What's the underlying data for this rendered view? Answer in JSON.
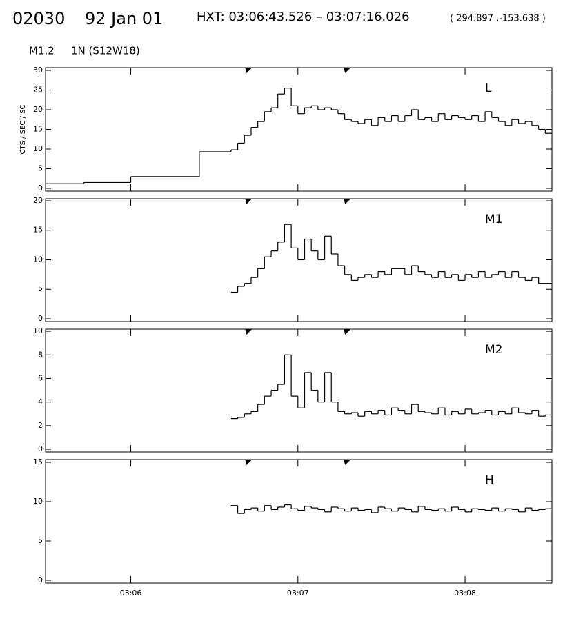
{
  "header": {
    "event": "02030",
    "date": "92 Jan 01",
    "interval": "HXT: 03:06:43.526 – 03:07:16.026",
    "coords": "( 294.897 ,-153.638 )",
    "class": "M1.2",
    "location": "1N (S12W18)"
  },
  "chart_data": [
    {
      "type": "line",
      "step": true,
      "title": "L",
      "ylabel": "CTS / SEC / SC",
      "color": "#000000",
      "x": [
        5.49,
        5.72,
        6.0,
        6.41,
        6.6,
        6.64,
        6.68,
        6.72,
        6.76,
        6.8,
        6.84,
        6.88,
        6.92,
        6.96,
        7,
        7.04,
        7.08,
        7.12,
        7.16,
        7.2,
        7.24,
        7.28,
        7.32,
        7.36,
        7.4,
        7.44,
        7.48,
        7.52,
        7.56,
        7.6,
        7.64,
        7.68,
        7.72,
        7.76,
        7.8,
        7.84,
        7.88,
        7.92,
        7.96,
        8,
        8.04,
        8.08,
        8.12,
        8.16,
        8.2,
        8.24,
        8.28,
        8.32,
        8.36,
        8.4,
        8.44,
        8.48
      ],
      "values": [
        1.2,
        1.5,
        3,
        9.3,
        9.8,
        11.5,
        13.5,
        15.5,
        17,
        19.5,
        20.5,
        24,
        25.5,
        21,
        19,
        20.5,
        21,
        20,
        20.5,
        20,
        19,
        17.5,
        17,
        16.5,
        17.5,
        16,
        18,
        17,
        18.5,
        17,
        18.5,
        20,
        17.5,
        18,
        17,
        19,
        17.5,
        18.5,
        18,
        17.5,
        18.5,
        17,
        19.5,
        18,
        17,
        16,
        17.5,
        16.5,
        17,
        16,
        15,
        14
      ],
      "xlim": [
        5.49,
        8.52
      ],
      "xticks": [
        6,
        7,
        8
      ],
      "ylim": [
        -0.7,
        30.7
      ],
      "yticks": [
        0,
        5,
        10,
        15,
        20,
        25,
        30
      ],
      "markers": [
        6.705,
        7.295
      ]
    },
    {
      "type": "line",
      "step": true,
      "title": "M1",
      "color": "#000000",
      "x": [
        6.6,
        6.64,
        6.68,
        6.72,
        6.76,
        6.8,
        6.84,
        6.88,
        6.92,
        6.96,
        7,
        7.04,
        7.08,
        7.12,
        7.16,
        7.2,
        7.24,
        7.28,
        7.32,
        7.36,
        7.4,
        7.44,
        7.48,
        7.52,
        7.56,
        7.6,
        7.64,
        7.68,
        7.72,
        7.76,
        7.8,
        7.84,
        7.88,
        7.92,
        7.96,
        8,
        8.04,
        8.08,
        8.12,
        8.16,
        8.2,
        8.24,
        8.28,
        8.32,
        8.36,
        8.4,
        8.44,
        8.48
      ],
      "values": [
        4.5,
        5.5,
        6,
        7,
        8.5,
        10.5,
        11.5,
        13,
        16,
        12,
        10,
        13.5,
        11.5,
        10,
        14,
        11,
        9,
        7.5,
        6.5,
        7,
        7.5,
        7,
        8,
        7.5,
        8.5,
        8.5,
        7.5,
        9,
        8,
        7.5,
        7,
        8,
        7,
        7.5,
        6.5,
        7.5,
        7,
        8,
        7,
        7.5,
        8,
        7,
        8,
        7,
        6.5,
        7,
        6,
        6
      ],
      "xlim": [
        5.49,
        8.52
      ],
      "xticks": [
        6,
        7,
        8
      ],
      "ylim": [
        -0.47,
        20.35
      ],
      "yticks": [
        0,
        5,
        10,
        15,
        20
      ],
      "markers": [
        6.705,
        7.295
      ]
    },
    {
      "type": "line",
      "step": true,
      "title": "M2",
      "color": "#000000",
      "x": [
        6.6,
        6.64,
        6.68,
        6.72,
        6.76,
        6.8,
        6.84,
        6.88,
        6.92,
        6.96,
        7,
        7.04,
        7.08,
        7.12,
        7.16,
        7.2,
        7.24,
        7.28,
        7.32,
        7.36,
        7.4,
        7.44,
        7.48,
        7.52,
        7.56,
        7.6,
        7.64,
        7.68,
        7.72,
        7.76,
        7.8,
        7.84,
        7.88,
        7.92,
        7.96,
        8,
        8.04,
        8.08,
        8.12,
        8.16,
        8.2,
        8.24,
        8.28,
        8.32,
        8.36,
        8.4,
        8.44,
        8.48
      ],
      "values": [
        2.6,
        2.7,
        3,
        3.2,
        3.8,
        4.5,
        5,
        5.5,
        8,
        4.5,
        3.5,
        6.5,
        5,
        4,
        6.5,
        4,
        3.2,
        3,
        3.1,
        2.8,
        3.2,
        3,
        3.3,
        2.9,
        3.5,
        3.3,
        3,
        3.8,
        3.2,
        3.1,
        3,
        3.5,
        2.9,
        3.2,
        3,
        3.4,
        3,
        3.1,
        3.3,
        2.9,
        3.2,
        3,
        3.5,
        3.1,
        3,
        3.3,
        2.8,
        2.9
      ],
      "xlim": [
        5.49,
        8.52
      ],
      "xticks": [
        6,
        7,
        8
      ],
      "ylim": [
        -0.23,
        10.18
      ],
      "yticks": [
        0,
        2,
        4,
        6,
        8,
        10
      ],
      "markers": [
        6.705,
        7.295
      ]
    },
    {
      "type": "line",
      "step": true,
      "title": "H",
      "color": "#000000",
      "x": [
        6.6,
        6.64,
        6.68,
        6.72,
        6.76,
        6.8,
        6.84,
        6.88,
        6.92,
        6.96,
        7,
        7.04,
        7.08,
        7.12,
        7.16,
        7.2,
        7.24,
        7.28,
        7.32,
        7.36,
        7.4,
        7.44,
        7.48,
        7.52,
        7.56,
        7.6,
        7.64,
        7.68,
        7.72,
        7.76,
        7.8,
        7.84,
        7.88,
        7.92,
        7.96,
        8,
        8.04,
        8.08,
        8.12,
        8.16,
        8.2,
        8.24,
        8.28,
        8.32,
        8.36,
        8.4,
        8.44,
        8.48
      ],
      "values": [
        9.5,
        8.5,
        9,
        9.2,
        8.8,
        9.5,
        9,
        9.3,
        9.6,
        9.1,
        8.9,
        9.4,
        9.2,
        9,
        8.7,
        9.3,
        9.1,
        8.8,
        9.2,
        8.9,
        9,
        8.6,
        9.3,
        9.1,
        8.8,
        9.2,
        9,
        8.7,
        9.4,
        9,
        8.9,
        9.1,
        8.8,
        9.3,
        9,
        8.7,
        9.1,
        9,
        8.9,
        9.2,
        8.8,
        9.1,
        9,
        8.7,
        9.2,
        8.9,
        9,
        9.1
      ],
      "xlim": [
        5.49,
        8.52
      ],
      "xticks": [
        {
          "value": 6,
          "label": "03:06"
        },
        {
          "value": 7,
          "label": "03:07"
        },
        {
          "value": 8,
          "label": "03:08"
        }
      ],
      "ylim": [
        -0.35,
        15.35
      ],
      "yticks": [
        0,
        5,
        10,
        15
      ],
      "markers": [
        6.705,
        7.295
      ]
    }
  ]
}
